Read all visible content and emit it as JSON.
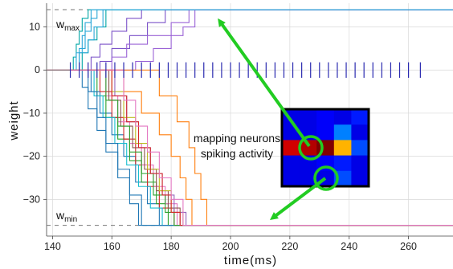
{
  "chart_data": {
    "type": "line",
    "title": "",
    "xlabel": "time(ms)",
    "ylabel": "weight",
    "xlim": [
      138,
      275
    ],
    "ylim": [
      -38.5,
      15.5
    ],
    "x_ticks": [
      140,
      160,
      180,
      200,
      220,
      240,
      260
    ],
    "y_ticks": [
      10,
      0,
      -10,
      -20,
      -30
    ],
    "grid": true,
    "w_max": {
      "value": 14,
      "label_main": "w",
      "label_sub": "max"
    },
    "w_min": {
      "value": -36,
      "label_main": "w",
      "label_sub": "min"
    },
    "annotation": {
      "line1": "mapping neurons",
      "line2": "spiking activity"
    },
    "spike_raster": {
      "color": "#2b2bb0",
      "y_range": [
        -1.8,
        1.8
      ],
      "times": [
        146,
        149,
        152,
        155,
        158,
        161,
        164,
        167,
        170,
        173,
        176,
        179,
        182,
        185,
        188,
        191,
        194,
        197,
        200,
        203,
        206,
        209,
        212,
        215,
        218,
        221,
        224,
        227,
        230,
        233,
        236,
        239,
        242,
        245,
        248,
        251,
        254,
        257,
        260,
        264
      ]
    },
    "heatmap": {
      "rows": 5,
      "cols": 5,
      "values": [
        [
          0.1,
          0.1,
          0.12,
          0.1,
          0.15
        ],
        [
          0.1,
          0.1,
          0.12,
          0.25,
          0.1
        ],
        [
          0.92,
          0.95,
          1.0,
          0.7,
          0.2
        ],
        [
          0.1,
          0.1,
          0.12,
          0.15,
          0.1
        ],
        [
          0.1,
          0.1,
          0.1,
          0.2,
          0.1
        ]
      ]
    },
    "series_up": [
      {
        "color": "#00a6a6",
        "steps": [
          [
            145,
            0
          ],
          [
            147,
            3
          ],
          [
            148,
            6
          ],
          [
            149,
            9
          ],
          [
            150,
            12
          ],
          [
            152,
            14
          ]
        ]
      },
      {
        "color": "#2aa7d8",
        "steps": [
          [
            146,
            0
          ],
          [
            148,
            4
          ],
          [
            150,
            8
          ],
          [
            151,
            11
          ],
          [
            153,
            14
          ]
        ]
      },
      {
        "color": "#2aa7d8",
        "steps": [
          [
            147,
            0
          ],
          [
            149,
            5
          ],
          [
            151,
            9
          ],
          [
            153,
            12
          ],
          [
            155,
            14
          ]
        ]
      },
      {
        "color": "#00a6a6",
        "steps": [
          [
            148,
            0
          ],
          [
            150,
            4
          ],
          [
            152,
            7
          ],
          [
            155,
            10
          ],
          [
            158,
            14
          ]
        ]
      },
      {
        "color": "#7b52c8",
        "steps": [
          [
            150,
            0
          ],
          [
            153,
            3
          ],
          [
            156,
            6
          ],
          [
            160,
            9
          ],
          [
            165,
            12
          ],
          [
            170,
            14
          ]
        ]
      },
      {
        "color": "#7b52c8",
        "steps": [
          [
            152,
            0
          ],
          [
            156,
            2
          ],
          [
            160,
            5
          ],
          [
            166,
            8
          ],
          [
            172,
            11
          ],
          [
            178,
            14
          ]
        ]
      },
      {
        "color": "#9a63d6",
        "steps": [
          [
            155,
            0
          ],
          [
            160,
            3
          ],
          [
            165,
            6
          ],
          [
            172,
            8
          ],
          [
            180,
            11
          ],
          [
            186,
            14
          ]
        ]
      },
      {
        "color": "#9a63d6",
        "steps": [
          [
            162,
            0
          ],
          [
            168,
            2
          ],
          [
            174,
            5
          ],
          [
            180,
            8
          ],
          [
            184,
            10
          ],
          [
            188,
            14
          ]
        ]
      },
      {
        "color": "#2aa7d8",
        "steps": [
          [
            146,
            0
          ],
          [
            149,
            4
          ],
          [
            152,
            7
          ],
          [
            154,
            10
          ],
          [
            157,
            14
          ]
        ]
      }
    ],
    "series_down": [
      {
        "color": "#1f77b4",
        "steps": [
          [
            148,
            0
          ],
          [
            150,
            -4
          ],
          [
            152,
            -9
          ],
          [
            155,
            -14
          ],
          [
            158,
            -19
          ],
          [
            162,
            -25
          ],
          [
            166,
            -31
          ],
          [
            169,
            -36
          ]
        ]
      },
      {
        "color": "#1f77b4",
        "steps": [
          [
            150,
            0
          ],
          [
            153,
            -5
          ],
          [
            156,
            -10
          ],
          [
            160,
            -15
          ],
          [
            164,
            -20
          ],
          [
            168,
            -26
          ],
          [
            172,
            -31
          ],
          [
            176,
            -36
          ]
        ]
      },
      {
        "color": "#2ca02c",
        "steps": [
          [
            152,
            0
          ],
          [
            155,
            -6
          ],
          [
            158,
            -11
          ],
          [
            162,
            -16
          ],
          [
            166,
            -21
          ],
          [
            170,
            -26
          ],
          [
            175,
            -31
          ],
          [
            179,
            -36
          ]
        ]
      },
      {
        "color": "#d62728",
        "steps": [
          [
            153,
            0
          ],
          [
            156,
            -5
          ],
          [
            160,
            -11
          ],
          [
            164,
            -16
          ],
          [
            168,
            -22
          ],
          [
            172,
            -27
          ],
          [
            176,
            -32
          ],
          [
            181,
            -36
          ]
        ]
      },
      {
        "color": "#e377c2",
        "steps": [
          [
            154,
            0
          ],
          [
            158,
            -6
          ],
          [
            162,
            -12
          ],
          [
            166,
            -17
          ],
          [
            170,
            -22
          ],
          [
            174,
            -27
          ],
          [
            178,
            -31
          ],
          [
            182,
            -36
          ]
        ]
      },
      {
        "color": "#8c564b",
        "steps": [
          [
            155,
            0
          ],
          [
            159,
            -7
          ],
          [
            163,
            -13
          ],
          [
            167,
            -18
          ],
          [
            171,
            -23
          ],
          [
            175,
            -28
          ],
          [
            179,
            -32
          ],
          [
            183,
            -36
          ]
        ]
      },
      {
        "color": "#17becf",
        "steps": [
          [
            151,
            0
          ],
          [
            154,
            -6
          ],
          [
            157,
            -11
          ],
          [
            161,
            -17
          ],
          [
            165,
            -22
          ],
          [
            169,
            -27
          ],
          [
            173,
            -32
          ],
          [
            177,
            -36
          ]
        ]
      },
      {
        "color": "#bcbd22",
        "steps": [
          [
            156,
            0
          ],
          [
            160,
            -5
          ],
          [
            164,
            -11
          ],
          [
            168,
            -17
          ],
          [
            172,
            -23
          ],
          [
            176,
            -28
          ],
          [
            180,
            -33
          ],
          [
            184,
            -36
          ]
        ]
      },
      {
        "color": "#9467bd",
        "steps": [
          [
            157,
            0
          ],
          [
            161,
            -6
          ],
          [
            165,
            -12
          ],
          [
            169,
            -18
          ],
          [
            173,
            -24
          ],
          [
            177,
            -29
          ],
          [
            181,
            -33
          ],
          [
            185,
            -36
          ]
        ]
      },
      {
        "color": "#ff7f0e",
        "steps": [
          [
            158,
            0
          ],
          [
            164,
            -5
          ],
          [
            170,
            -10
          ],
          [
            176,
            -15
          ],
          [
            180,
            -20
          ],
          [
            183,
            -25
          ],
          [
            185,
            -30
          ],
          [
            187,
            -36
          ]
        ]
      },
      {
        "color": "#ff7f0e",
        "steps": [
          [
            170,
            0
          ],
          [
            176,
            -6
          ],
          [
            182,
            -12
          ],
          [
            186,
            -18
          ],
          [
            188,
            -24
          ],
          [
            190,
            -30
          ],
          [
            192,
            -36
          ]
        ]
      },
      {
        "color": "#1f77b4",
        "steps": [
          [
            149,
            0
          ],
          [
            152,
            -5
          ],
          [
            155,
            -11
          ],
          [
            158,
            -17
          ],
          [
            162,
            -23
          ],
          [
            166,
            -29
          ],
          [
            170,
            -36
          ]
        ]
      },
      {
        "color": "#2ca02c",
        "steps": [
          [
            154,
            0
          ],
          [
            158,
            -7
          ],
          [
            162,
            -13
          ],
          [
            166,
            -19
          ],
          [
            170,
            -24
          ],
          [
            174,
            -29
          ],
          [
            178,
            -33
          ],
          [
            181,
            -36
          ]
        ]
      },
      {
        "color": "#d62728",
        "steps": [
          [
            156,
            0
          ],
          [
            160,
            -6
          ],
          [
            165,
            -12
          ],
          [
            169,
            -18
          ],
          [
            173,
            -24
          ],
          [
            177,
            -29
          ],
          [
            180,
            -33
          ],
          [
            183,
            -36
          ]
        ]
      },
      {
        "color": "#e377c2",
        "steps": [
          [
            160,
            0
          ],
          [
            164,
            -7
          ],
          [
            168,
            -13
          ],
          [
            172,
            -19
          ],
          [
            176,
            -25
          ],
          [
            180,
            -30
          ],
          [
            184,
            -36
          ]
        ]
      }
    ]
  }
}
